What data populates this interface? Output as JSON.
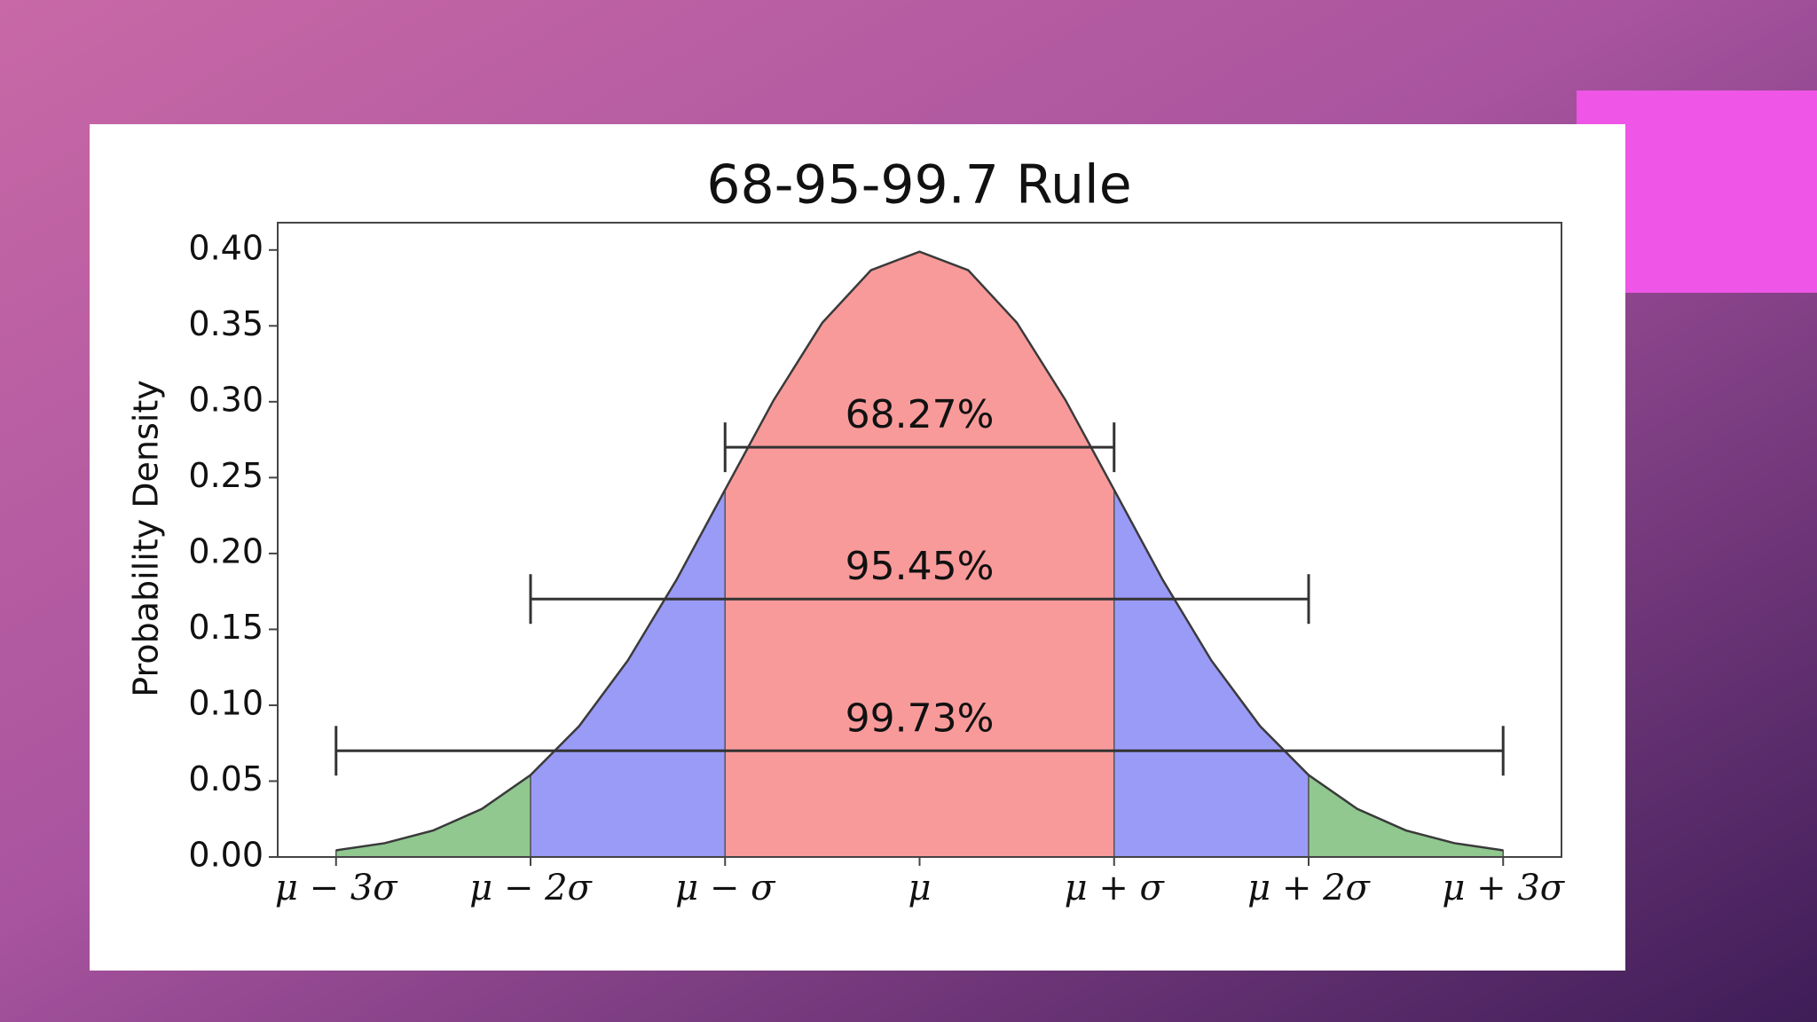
{
  "chart_data": {
    "type": "area",
    "title": "68-95-99.7 Rule",
    "ylabel": "Probability Density",
    "x": [
      -3,
      -2.75,
      -2.5,
      -2.25,
      -2,
      -1.75,
      -1.5,
      -1.25,
      -1,
      -0.75,
      -0.5,
      -0.25,
      0,
      0.25,
      0.5,
      0.75,
      1,
      1.25,
      1.5,
      1.75,
      2,
      2.25,
      2.5,
      2.75,
      3
    ],
    "values": [
      0.0044,
      0.0091,
      0.0175,
      0.0317,
      0.054,
      0.0863,
      0.1295,
      0.1826,
      0.242,
      0.3011,
      0.3521,
      0.3867,
      0.3989,
      0.3867,
      0.3521,
      0.3011,
      0.242,
      0.1826,
      0.1295,
      0.0863,
      0.054,
      0.0317,
      0.0175,
      0.0091,
      0.0044
    ],
    "line_color": "#3a3a3a",
    "areas": [
      {
        "from": -3,
        "to": -2,
        "color": "#90c890"
      },
      {
        "from": -2,
        "to": -1,
        "color": "#9a9af7"
      },
      {
        "from": -1,
        "to": 1,
        "color": "#f99a9a"
      },
      {
        "from": 1,
        "to": 2,
        "color": "#9a9af7"
      },
      {
        "from": 2,
        "to": 3,
        "color": "#90c890"
      }
    ],
    "annotations": [
      {
        "text": "68.27%",
        "x_range": [
          -1,
          1
        ],
        "y": 0.27
      },
      {
        "text": "95.45%",
        "x_range": [
          -2,
          2
        ],
        "y": 0.17
      },
      {
        "text": "99.73%",
        "x_range": [
          -3,
          3
        ],
        "y": 0.07
      }
    ],
    "xlim": [
      -3.3,
      3.3
    ],
    "ylim": [
      0,
      0.418
    ],
    "xticks": [
      {
        "value": -3,
        "label": "μ − 3σ"
      },
      {
        "value": -2,
        "label": "μ − 2σ"
      },
      {
        "value": -1,
        "label": "μ − σ"
      },
      {
        "value": 0,
        "label": "μ"
      },
      {
        "value": 1,
        "label": "μ + σ"
      },
      {
        "value": 2,
        "label": "μ + 2σ"
      },
      {
        "value": 3,
        "label": "μ + 3σ"
      }
    ],
    "yticks": [
      {
        "value": 0,
        "label": "0.00"
      },
      {
        "value": 0.05,
        "label": "0.05"
      },
      {
        "value": 0.1,
        "label": "0.10"
      },
      {
        "value": 0.15,
        "label": "0.15"
      },
      {
        "value": 0.2,
        "label": "0.20"
      },
      {
        "value": 0.25,
        "label": "0.25"
      },
      {
        "value": 0.3,
        "label": "0.30"
      },
      {
        "value": 0.35,
        "label": "0.35"
      },
      {
        "value": 0.4,
        "label": "0.40"
      }
    ]
  }
}
